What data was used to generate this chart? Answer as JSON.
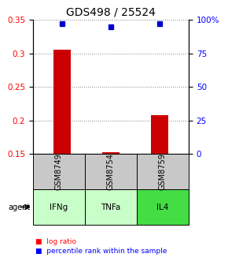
{
  "title": "GDS498 / 25524",
  "samples": [
    "GSM8749",
    "GSM8754",
    "GSM8759"
  ],
  "agents": [
    "IFNg",
    "TNFa",
    "IL4"
  ],
  "log_ratios": [
    0.305,
    0.152,
    0.208
  ],
  "percentile_ranks": [
    97,
    95,
    97
  ],
  "ylim_left": [
    0.15,
    0.35
  ],
  "ylim_right": [
    0,
    100
  ],
  "yticks_left": [
    0.15,
    0.2,
    0.25,
    0.3,
    0.35
  ],
  "yticks_right": [
    0,
    25,
    50,
    75,
    100
  ],
  "ytick_labels_right": [
    "0",
    "25",
    "50",
    "75",
    "100%"
  ],
  "bar_color": "#cc0000",
  "dot_color": "#0000cc",
  "sample_box_color": "#c8c8c8",
  "agent_colors": [
    "#c8ffc8",
    "#c8ffc8",
    "#44dd44"
  ],
  "legend_bar_label": "log ratio",
  "legend_dot_label": "percentile rank within the sample",
  "agent_label": "agent",
  "title_fontsize": 10,
  "tick_fontsize": 7.5,
  "cell_fontsize": 7,
  "legend_fontsize": 6.5
}
